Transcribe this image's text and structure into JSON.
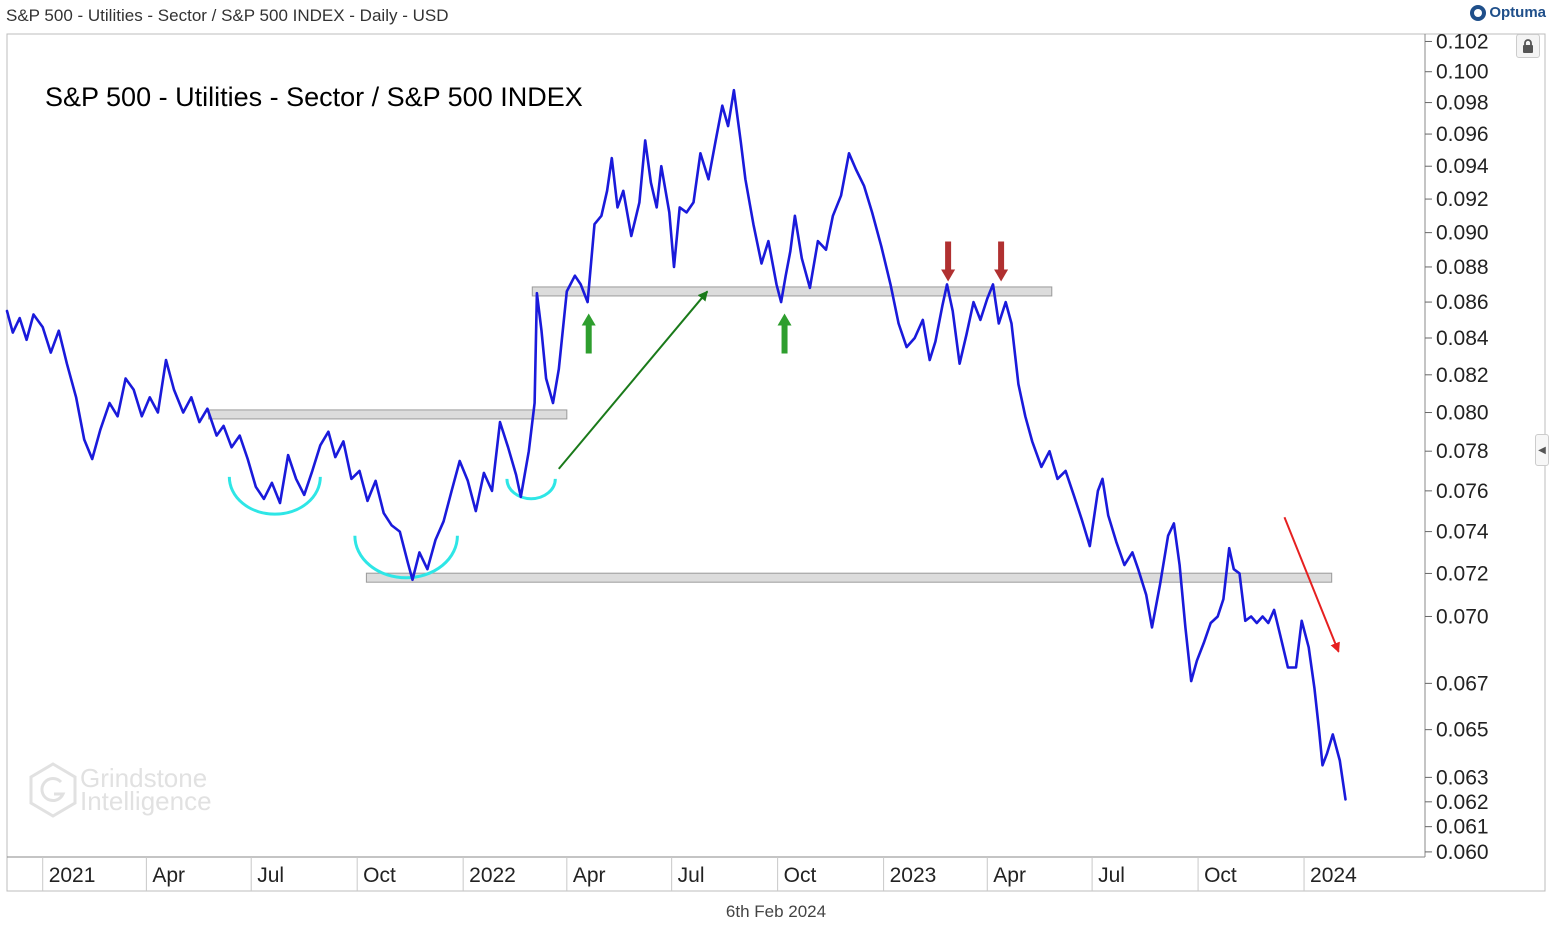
{
  "header": {
    "title": "S&P 500 - Utilities - Sector / S&P 500 INDEX - Daily - USD",
    "brand": "Optuma"
  },
  "footer": {
    "date": "6th Feb 2024"
  },
  "watermark": {
    "line1": "Grindstone",
    "line2": "Intelligence",
    "icon": "hexagon-g-icon"
  },
  "icons": {
    "lock": "lock-icon",
    "scroll": "chevron-left-icon"
  },
  "colors": {
    "line": "#1a1adb",
    "support_band": "#dcdcdc",
    "cup": "#2ee6e6",
    "up_arrow": "#2e9e2e",
    "down_arrow": "#b03030",
    "trend_up": "#1a7a1a",
    "trend_down": "#e62020"
  },
  "chart_data": {
    "type": "line",
    "title": "S&P 500 - Utilities - Sector / S&P 500 INDEX",
    "y_scale": "log",
    "ylim": [
      0.0598,
      0.1025
    ],
    "y_ticks": [
      "0.102",
      "0.100",
      "0.098",
      "0.096",
      "0.094",
      "0.092",
      "0.090",
      "0.088",
      "0.086",
      "0.084",
      "0.082",
      "0.080",
      "0.078",
      "0.076",
      "0.074",
      "0.072",
      "0.070",
      "0.067",
      "0.065",
      "0.063",
      "0.062",
      "0.061",
      "0.060"
    ],
    "x_ticks": [
      {
        "label": "2021",
        "date": "2021-01-01"
      },
      {
        "label": "Apr",
        "date": "2021-04-01"
      },
      {
        "label": "Jul",
        "date": "2021-07-01"
      },
      {
        "label": "Oct",
        "date": "2021-10-01"
      },
      {
        "label": "2022",
        "date": "2022-01-01"
      },
      {
        "label": "Apr",
        "date": "2022-04-01"
      },
      {
        "label": "Jul",
        "date": "2022-07-01"
      },
      {
        "label": "Oct",
        "date": "2022-10-01"
      },
      {
        "label": "2023",
        "date": "2023-01-01"
      },
      {
        "label": "Apr",
        "date": "2023-04-01"
      },
      {
        "label": "Jul",
        "date": "2023-07-01"
      },
      {
        "label": "Oct",
        "date": "2023-10-01"
      },
      {
        "label": "2024",
        "date": "2024-01-01"
      }
    ],
    "x_range": [
      "2020-12-01",
      "2024-04-15"
    ],
    "grid": false,
    "series": [
      {
        "points": [
          [
            "2020-12-01",
            0.0855
          ],
          [
            "2020-12-06",
            0.0843
          ],
          [
            "2020-12-12",
            0.0851
          ],
          [
            "2020-12-18",
            0.0839
          ],
          [
            "2020-12-24",
            0.0853
          ],
          [
            "2021-01-01",
            0.0846
          ],
          [
            "2021-01-08",
            0.0832
          ],
          [
            "2021-01-15",
            0.0844
          ],
          [
            "2021-01-22",
            0.0826
          ],
          [
            "2021-01-30",
            0.0808
          ],
          [
            "2021-02-06",
            0.0786
          ],
          [
            "2021-02-13",
            0.0776
          ],
          [
            "2021-02-20",
            0.0791
          ],
          [
            "2021-02-28",
            0.0805
          ],
          [
            "2021-03-07",
            0.0798
          ],
          [
            "2021-03-14",
            0.0818
          ],
          [
            "2021-03-21",
            0.0812
          ],
          [
            "2021-03-28",
            0.0798
          ],
          [
            "2021-04-04",
            0.0808
          ],
          [
            "2021-04-11",
            0.08
          ],
          [
            "2021-04-18",
            0.0828
          ],
          [
            "2021-04-25",
            0.0812
          ],
          [
            "2021-05-03",
            0.08
          ],
          [
            "2021-05-10",
            0.0808
          ],
          [
            "2021-05-17",
            0.0795
          ],
          [
            "2021-05-24",
            0.0802
          ],
          [
            "2021-06-01",
            0.0788
          ],
          [
            "2021-06-07",
            0.0793
          ],
          [
            "2021-06-14",
            0.0782
          ],
          [
            "2021-06-21",
            0.0788
          ],
          [
            "2021-06-28",
            0.0776
          ],
          [
            "2021-07-05",
            0.0762
          ],
          [
            "2021-07-12",
            0.0756
          ],
          [
            "2021-07-19",
            0.0764
          ],
          [
            "2021-07-26",
            0.0754
          ],
          [
            "2021-08-02",
            0.0778
          ],
          [
            "2021-08-09",
            0.0766
          ],
          [
            "2021-08-16",
            0.0758
          ],
          [
            "2021-08-23",
            0.077
          ],
          [
            "2021-08-30",
            0.0783
          ],
          [
            "2021-09-06",
            0.079
          ],
          [
            "2021-09-12",
            0.0777
          ],
          [
            "2021-09-19",
            0.0785
          ],
          [
            "2021-09-26",
            0.0766
          ],
          [
            "2021-10-03",
            0.077
          ],
          [
            "2021-10-10",
            0.0755
          ],
          [
            "2021-10-17",
            0.0765
          ],
          [
            "2021-10-24",
            0.0749
          ],
          [
            "2021-10-31",
            0.0743
          ],
          [
            "2021-11-07",
            0.074
          ],
          [
            "2021-11-14",
            0.0725
          ],
          [
            "2021-11-18",
            0.0717
          ],
          [
            "2021-11-24",
            0.073
          ],
          [
            "2021-12-01",
            0.0722
          ],
          [
            "2021-12-08",
            0.0736
          ],
          [
            "2021-12-15",
            0.0745
          ],
          [
            "2021-12-22",
            0.076
          ],
          [
            "2021-12-29",
            0.0775
          ],
          [
            "2022-01-05",
            0.0765
          ],
          [
            "2022-01-12",
            0.075
          ],
          [
            "2022-01-19",
            0.0769
          ],
          [
            "2022-01-26",
            0.076
          ],
          [
            "2022-02-02",
            0.0795
          ],
          [
            "2022-02-09",
            0.0782
          ],
          [
            "2022-02-16",
            0.0768
          ],
          [
            "2022-02-20",
            0.0757
          ],
          [
            "2022-02-27",
            0.078
          ],
          [
            "2022-03-04",
            0.0805
          ],
          [
            "2022-03-06",
            0.0865
          ],
          [
            "2022-03-10",
            0.0844
          ],
          [
            "2022-03-14",
            0.0818
          ],
          [
            "2022-03-20",
            0.0805
          ],
          [
            "2022-03-25",
            0.0823
          ],
          [
            "2022-04-01",
            0.0866
          ],
          [
            "2022-04-08",
            0.0875
          ],
          [
            "2022-04-13",
            0.087
          ],
          [
            "2022-04-19",
            0.086
          ],
          [
            "2022-04-25",
            0.0905
          ],
          [
            "2022-05-01",
            0.091
          ],
          [
            "2022-05-06",
            0.0925
          ],
          [
            "2022-05-10",
            0.0945
          ],
          [
            "2022-05-15",
            0.0915
          ],
          [
            "2022-05-20",
            0.0925
          ],
          [
            "2022-05-27",
            0.0898
          ],
          [
            "2022-06-03",
            0.0918
          ],
          [
            "2022-06-08",
            0.0956
          ],
          [
            "2022-06-13",
            0.093
          ],
          [
            "2022-06-18",
            0.0915
          ],
          [
            "2022-06-22",
            0.094
          ],
          [
            "2022-06-29",
            0.0912
          ],
          [
            "2022-07-03",
            0.088
          ],
          [
            "2022-07-08",
            0.0915
          ],
          [
            "2022-07-14",
            0.0912
          ],
          [
            "2022-07-20",
            0.0918
          ],
          [
            "2022-07-26",
            0.0948
          ],
          [
            "2022-08-02",
            0.0932
          ],
          [
            "2022-08-08",
            0.0955
          ],
          [
            "2022-08-14",
            0.0978
          ],
          [
            "2022-08-19",
            0.0965
          ],
          [
            "2022-08-24",
            0.0988
          ],
          [
            "2022-08-30",
            0.0955
          ],
          [
            "2022-09-03",
            0.0932
          ],
          [
            "2022-09-10",
            0.0905
          ],
          [
            "2022-09-17",
            0.0882
          ],
          [
            "2022-09-23",
            0.0895
          ],
          [
            "2022-09-30",
            0.087
          ],
          [
            "2022-10-04",
            0.086
          ],
          [
            "2022-10-08",
            0.0875
          ],
          [
            "2022-10-12",
            0.0889
          ],
          [
            "2022-10-16",
            0.091
          ],
          [
            "2022-10-22",
            0.0885
          ],
          [
            "2022-10-29",
            0.0868
          ],
          [
            "2022-11-05",
            0.0895
          ],
          [
            "2022-11-12",
            0.089
          ],
          [
            "2022-11-18",
            0.091
          ],
          [
            "2022-11-25",
            0.0922
          ],
          [
            "2022-12-02",
            0.0948
          ],
          [
            "2022-12-08",
            0.0938
          ],
          [
            "2022-12-15",
            0.0928
          ],
          [
            "2022-12-22",
            0.0912
          ],
          [
            "2022-12-30",
            0.0892
          ],
          [
            "2023-01-07",
            0.087
          ],
          [
            "2023-01-14",
            0.0848
          ],
          [
            "2023-01-21",
            0.0835
          ],
          [
            "2023-01-28",
            0.084
          ],
          [
            "2023-02-04",
            0.085
          ],
          [
            "2023-02-10",
            0.0828
          ],
          [
            "2023-02-15",
            0.0838
          ],
          [
            "2023-02-21",
            0.0858
          ],
          [
            "2023-02-25",
            0.087
          ],
          [
            "2023-03-02",
            0.0855
          ],
          [
            "2023-03-08",
            0.0826
          ],
          [
            "2023-03-14",
            0.0842
          ],
          [
            "2023-03-20",
            0.086
          ],
          [
            "2023-03-26",
            0.085
          ],
          [
            "2023-04-01",
            0.0862
          ],
          [
            "2023-04-06",
            0.087
          ],
          [
            "2023-04-11",
            0.0848
          ],
          [
            "2023-04-17",
            0.086
          ],
          [
            "2023-04-22",
            0.0848
          ],
          [
            "2023-04-28",
            0.0815
          ],
          [
            "2023-05-04",
            0.0798
          ],
          [
            "2023-05-10",
            0.0785
          ],
          [
            "2023-05-18",
            0.0772
          ],
          [
            "2023-05-25",
            0.078
          ],
          [
            "2023-06-01",
            0.0766
          ],
          [
            "2023-06-08",
            0.077
          ],
          [
            "2023-06-15",
            0.0758
          ],
          [
            "2023-06-22",
            0.0746
          ],
          [
            "2023-06-29",
            0.0733
          ],
          [
            "2023-07-06",
            0.076
          ],
          [
            "2023-07-10",
            0.0766
          ],
          [
            "2023-07-15",
            0.0748
          ],
          [
            "2023-07-22",
            0.0735
          ],
          [
            "2023-07-29",
            0.0724
          ],
          [
            "2023-08-05",
            0.073
          ],
          [
            "2023-08-10",
            0.0722
          ],
          [
            "2023-08-17",
            0.071
          ],
          [
            "2023-08-22",
            0.0695
          ],
          [
            "2023-08-29",
            0.0715
          ],
          [
            "2023-09-05",
            0.0738
          ],
          [
            "2023-09-10",
            0.0744
          ],
          [
            "2023-09-15",
            0.0724
          ],
          [
            "2023-09-20",
            0.0695
          ],
          [
            "2023-09-25",
            0.0671
          ],
          [
            "2023-09-30",
            0.068
          ],
          [
            "2023-10-06",
            0.0688
          ],
          [
            "2023-10-12",
            0.0697
          ],
          [
            "2023-10-18",
            0.07
          ],
          [
            "2023-10-23",
            0.0708
          ],
          [
            "2023-10-28",
            0.0732
          ],
          [
            "2023-11-01",
            0.0722
          ],
          [
            "2023-11-06",
            0.072
          ],
          [
            "2023-11-11",
            0.0698
          ],
          [
            "2023-11-16",
            0.07
          ],
          [
            "2023-11-21",
            0.0697
          ],
          [
            "2023-11-26",
            0.07
          ],
          [
            "2023-12-01",
            0.0697
          ],
          [
            "2023-12-06",
            0.0703
          ],
          [
            "2023-12-12",
            0.069
          ],
          [
            "2023-12-18",
            0.0677
          ],
          [
            "2023-12-25",
            0.0677
          ],
          [
            "2023-12-30",
            0.0698
          ],
          [
            "2024-01-05",
            0.0686
          ],
          [
            "2024-01-10",
            0.0668
          ],
          [
            "2024-01-14",
            0.065
          ],
          [
            "2024-01-17",
            0.0635
          ],
          [
            "2024-01-21",
            0.064
          ],
          [
            "2024-01-26",
            0.0648
          ],
          [
            "2024-02-01",
            0.0637
          ],
          [
            "2024-02-06",
            0.0621
          ]
        ]
      }
    ],
    "annotations": {
      "support_bands": [
        {
          "y": 0.0866,
          "from": "2022-03-02",
          "to": "2023-05-27"
        },
        {
          "y": 0.0799,
          "from": "2021-05-25",
          "to": "2022-04-01"
        },
        {
          "y": 0.0718,
          "from": "2021-10-09",
          "to": "2024-01-25"
        }
      ],
      "cups": [
        {
          "from": "2021-06-12",
          "to": "2021-08-30",
          "y": 0.0767
        },
        {
          "from": "2021-09-29",
          "to": "2021-12-27",
          "y": 0.0738
        },
        {
          "from": "2022-02-08",
          "to": "2022-03-22",
          "y": 0.0766
        }
      ],
      "up_arrows": [
        "2022-04-20",
        "2022-10-07"
      ],
      "down_arrows": [
        "2023-02-26",
        "2023-04-13"
      ],
      "trend_up": {
        "from": [
          "2022-03-25",
          0.0771
        ],
        "to": [
          "2022-08-01",
          0.0866
        ]
      },
      "trend_down": {
        "from": [
          "2023-12-15",
          0.0747
        ],
        "to": [
          "2024-01-31",
          0.0684
        ]
      }
    }
  }
}
